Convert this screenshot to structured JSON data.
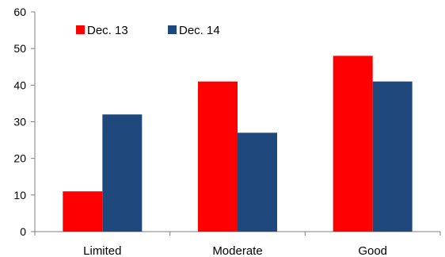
{
  "chart_data": {
    "type": "bar",
    "title": "",
    "xlabel": "",
    "ylabel": "",
    "categories": [
      "Limited",
      "Moderate",
      "Good"
    ],
    "series": [
      {
        "name": "Dec. 13",
        "color": "#ff0000",
        "values": [
          11,
          41,
          48
        ]
      },
      {
        "name": "Dec. 14",
        "color": "#1f497d",
        "values": [
          32,
          27,
          41
        ]
      }
    ],
    "ylim": [
      0,
      60
    ],
    "yticks": [
      "0",
      "10",
      "20",
      "30",
      "40",
      "50",
      "60"
    ],
    "grid": false,
    "legend_position": "top-left"
  }
}
